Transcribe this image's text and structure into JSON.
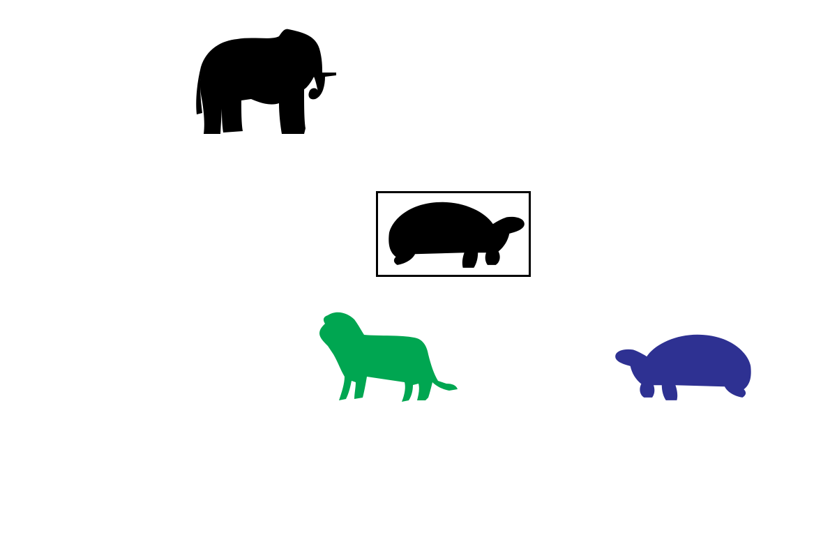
{
  "scene": {
    "elephant": {
      "icon": "elephant-icon",
      "color": "#000000"
    },
    "framed_tortoise": {
      "icon": "tortoise-icon",
      "color": "#000000",
      "frame_color": "#000000"
    },
    "lion": {
      "icon": "lion-icon",
      "color": "#00a651"
    },
    "blue_tortoise": {
      "icon": "tortoise-icon",
      "color": "#2e3192"
    }
  }
}
